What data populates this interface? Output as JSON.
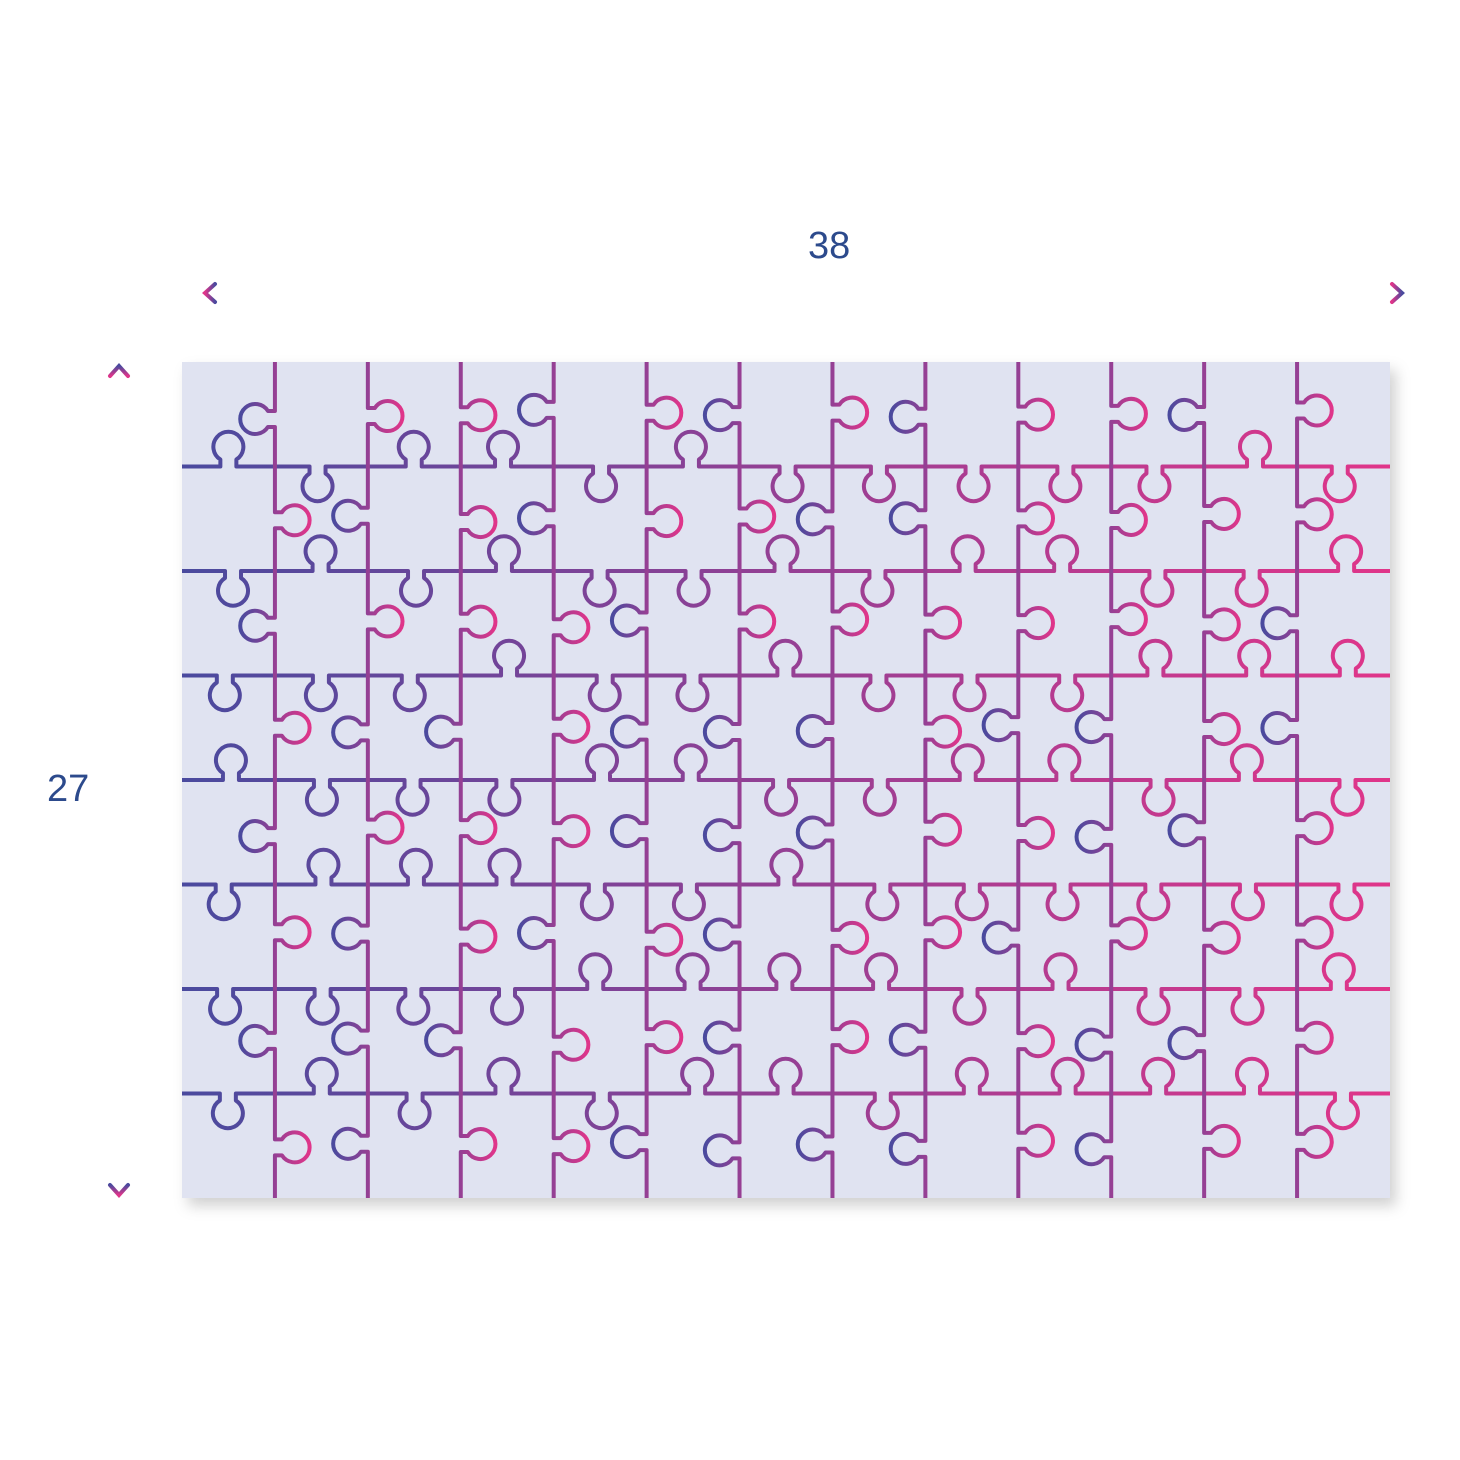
{
  "dimensions": {
    "width_label": "38",
    "height_label": "27"
  },
  "colors": {
    "blue": "#4a4a9e",
    "pink": "#e0358a",
    "board": "#e0e3f1",
    "label": "#2c4a8c"
  }
}
